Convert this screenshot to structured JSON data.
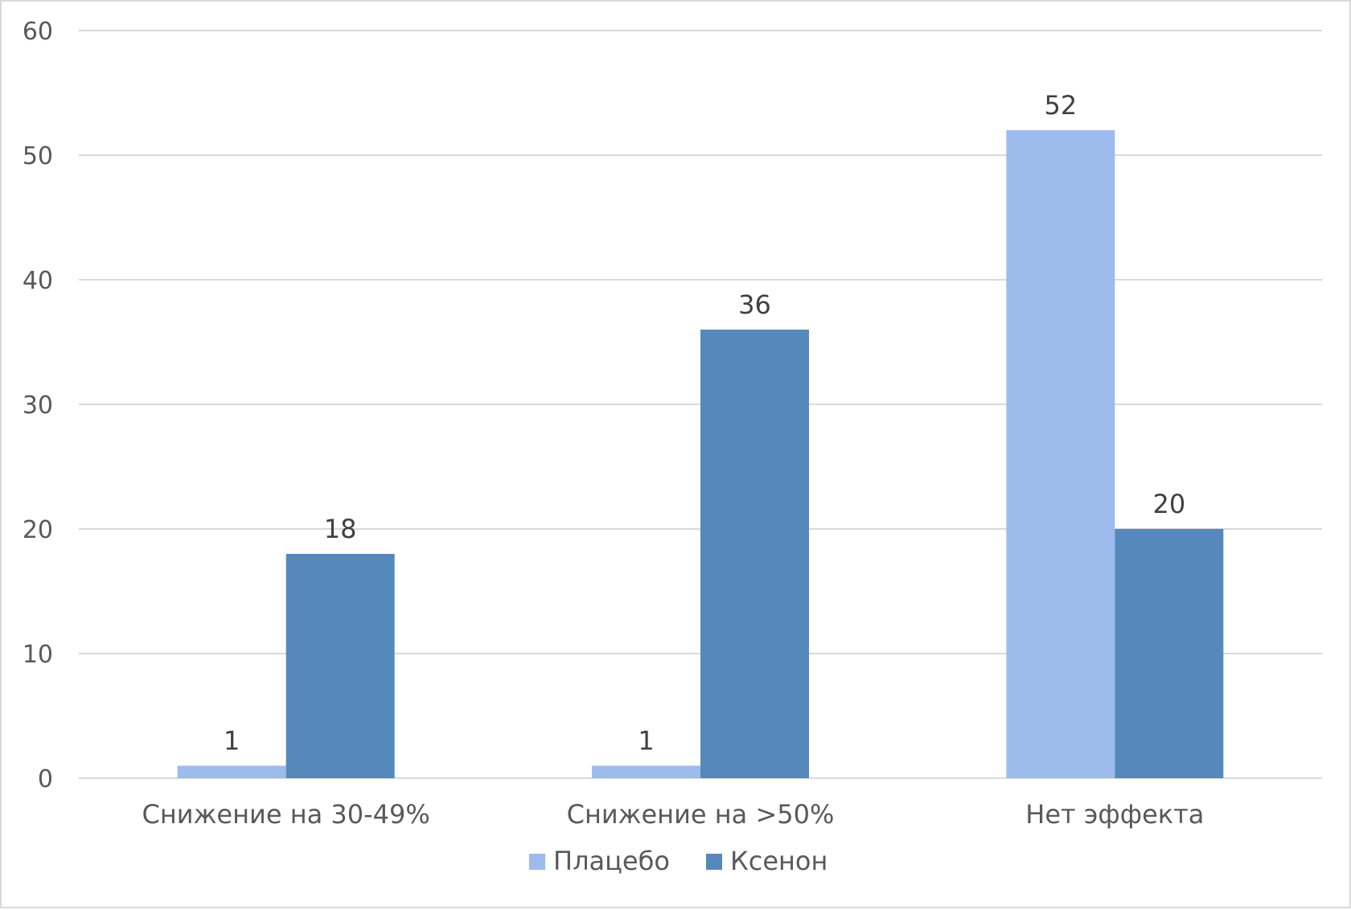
{
  "chart_data": {
    "type": "bar",
    "title": "",
    "xlabel": "",
    "ylabel": "",
    "categories": [
      "Снижение на 30-49%",
      "Снижение на >50%",
      "Нет эффекта"
    ],
    "series": [
      {
        "name": "Плацебо",
        "values": [
          1,
          1,
          52
        ],
        "color": "#9dbbed"
      },
      {
        "name": "Ксенон",
        "values": [
          18,
          36,
          20
        ],
        "color": "#5589bb"
      }
    ],
    "ylim": [
      0,
      60
    ],
    "yticks": [
      0,
      10,
      20,
      30,
      40,
      50,
      60
    ],
    "grid": true,
    "legend": "bottom",
    "data_labels": true
  }
}
